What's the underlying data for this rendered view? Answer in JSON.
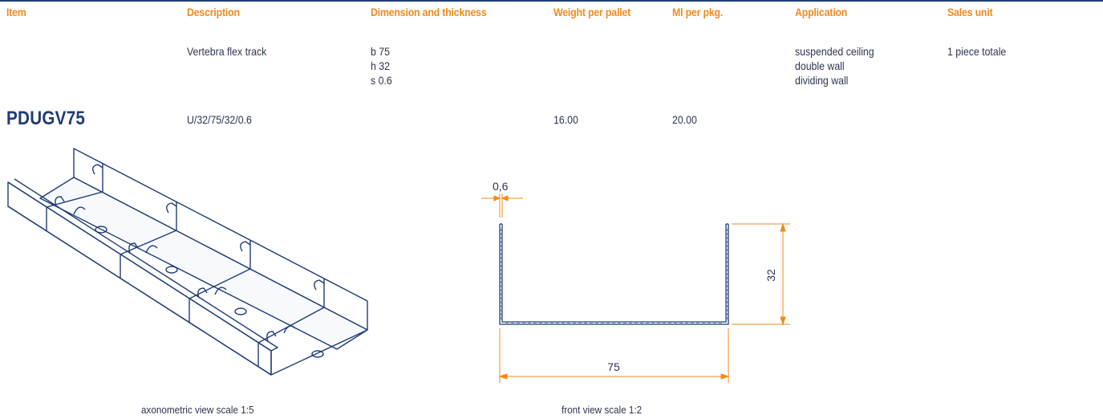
{
  "table": {
    "headers": {
      "item": "Item",
      "description": "Description",
      "dimension": "Dimension and thickness",
      "weight": "Weight per pallet",
      "ml": "Ml per pkg.",
      "application": "Application",
      "sales_unit": "Sales unit"
    },
    "spec_row": {
      "description": "Vertebra flex track",
      "dimensions": [
        "b 75",
        "h 32",
        "s 0.6"
      ],
      "application": [
        "suspended ceiling",
        "double wall",
        "dividing wall"
      ],
      "sales_unit": "1 piece totale"
    },
    "product_row": {
      "code": "PDUGV75",
      "description": "U/32/75/32/0.6",
      "weight": "16.00",
      "ml": "20.00"
    }
  },
  "drawings": {
    "axonometric_caption": "axonometric view scale 1:5",
    "front_caption": "front view scale 1:2",
    "front_dimensions": {
      "thickness": "0,6",
      "height": "32",
      "width": "75"
    }
  },
  "colors": {
    "accent": "#f08a1c",
    "brand_blue": "#1f3c78",
    "text": "#2c3550"
  }
}
